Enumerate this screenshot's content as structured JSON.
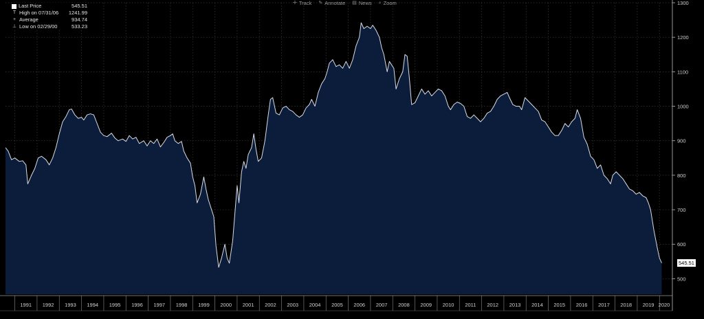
{
  "toolbar": {
    "items": [
      {
        "label": "Track",
        "icon": "crosshair-icon",
        "glyph": "✛"
      },
      {
        "label": "Annotate",
        "icon": "pencil-icon",
        "glyph": "✎"
      },
      {
        "label": "News",
        "icon": "news-icon",
        "glyph": "▤"
      },
      {
        "label": "Zoom",
        "icon": "magnifier-icon",
        "glyph": "⌕"
      }
    ]
  },
  "legend": {
    "rows": [
      {
        "marker": "square",
        "label": "Last Price",
        "value": "545.51"
      },
      {
        "marker": "T",
        "label": "High on 07/31/06",
        "value": "1241.99"
      },
      {
        "marker": "+",
        "label": "Average",
        "value": "934.74"
      },
      {
        "marker": "⊥",
        "label": "Low on 02/29/00",
        "value": "533.23"
      }
    ]
  },
  "last_price_label": "545.51",
  "colors": {
    "background": "#000000",
    "fill": "#0b1d3a",
    "line": "#d8dde6",
    "grid": "#3a3a3a",
    "axis_text": "#d0d0d0"
  },
  "chart_data": {
    "type": "area",
    "title": "",
    "xlabel": "",
    "ylabel": "",
    "ylim": [
      455,
      1300
    ],
    "yticks": [
      500,
      600,
      700,
      800,
      900,
      1000,
      1100,
      1200,
      1300
    ],
    "xlim": [
      1990.58,
      2020.58
    ],
    "xticks": [
      "1991",
      "1992",
      "1993",
      "1994",
      "1995",
      "1996",
      "1997",
      "1998",
      "1999",
      "2000",
      "2001",
      "2002",
      "2003",
      "2004",
      "2005",
      "2006",
      "2007",
      "2008",
      "2009",
      "2010",
      "2011",
      "2012",
      "2013",
      "2014",
      "2015",
      "2016",
      "2017",
      "2018",
      "2019",
      "2020"
    ],
    "grid": true,
    "y_axis_side": "right",
    "series": [
      {
        "values": [
          [
            1990.58,
            880
          ],
          [
            1990.7,
            870
          ],
          [
            1990.85,
            845
          ],
          [
            1991.0,
            850
          ],
          [
            1991.2,
            840
          ],
          [
            1991.35,
            842
          ],
          [
            1991.5,
            830
          ],
          [
            1991.58,
            775
          ],
          [
            1991.75,
            800
          ],
          [
            1991.9,
            820
          ],
          [
            1992.05,
            850
          ],
          [
            1992.2,
            855
          ],
          [
            1992.4,
            845
          ],
          [
            1992.55,
            830
          ],
          [
            1992.7,
            850
          ],
          [
            1992.85,
            880
          ],
          [
            1993.0,
            920
          ],
          [
            1993.15,
            955
          ],
          [
            1993.3,
            970
          ],
          [
            1993.45,
            990
          ],
          [
            1993.55,
            992
          ],
          [
            1993.7,
            975
          ],
          [
            1993.85,
            965
          ],
          [
            1994.0,
            968
          ],
          [
            1994.1,
            960
          ],
          [
            1994.25,
            975
          ],
          [
            1994.4,
            978
          ],
          [
            1994.55,
            975
          ],
          [
            1994.7,
            950
          ],
          [
            1994.85,
            925
          ],
          [
            1995.0,
            915
          ],
          [
            1995.15,
            912
          ],
          [
            1995.35,
            922
          ],
          [
            1995.5,
            908
          ],
          [
            1995.65,
            900
          ],
          [
            1995.85,
            905
          ],
          [
            1996.0,
            898
          ],
          [
            1996.15,
            915
          ],
          [
            1996.3,
            905
          ],
          [
            1996.45,
            910
          ],
          [
            1996.6,
            892
          ],
          [
            1996.8,
            900
          ],
          [
            1996.95,
            885
          ],
          [
            1997.1,
            900
          ],
          [
            1997.25,
            892
          ],
          [
            1997.4,
            905
          ],
          [
            1997.55,
            882
          ],
          [
            1997.7,
            895
          ],
          [
            1997.85,
            910
          ],
          [
            1998.0,
            915
          ],
          [
            1998.1,
            920
          ],
          [
            1998.2,
            900
          ],
          [
            1998.35,
            892
          ],
          [
            1998.5,
            898
          ],
          [
            1998.6,
            870
          ],
          [
            1998.75,
            850
          ],
          [
            1998.9,
            835
          ],
          [
            1999.0,
            795
          ],
          [
            1999.1,
            770
          ],
          [
            1999.2,
            720
          ],
          [
            1999.35,
            745
          ],
          [
            1999.5,
            795
          ],
          [
            1999.6,
            760
          ],
          [
            1999.7,
            730
          ],
          [
            1999.85,
            700
          ],
          [
            1999.95,
            680
          ],
          [
            2000.05,
            595
          ],
          [
            2000.17,
            533
          ],
          [
            2000.3,
            560
          ],
          [
            2000.45,
            600
          ],
          [
            2000.55,
            560
          ],
          [
            2000.65,
            545
          ],
          [
            2000.8,
            610
          ],
          [
            2000.9,
            690
          ],
          [
            2001.0,
            770
          ],
          [
            2001.08,
            720
          ],
          [
            2001.2,
            810
          ],
          [
            2001.3,
            840
          ],
          [
            2001.4,
            820
          ],
          [
            2001.5,
            860
          ],
          [
            2001.65,
            880
          ],
          [
            2001.75,
            920
          ],
          [
            2001.85,
            875
          ],
          [
            2001.95,
            840
          ],
          [
            2002.1,
            850
          ],
          [
            2002.25,
            900
          ],
          [
            2002.4,
            975
          ],
          [
            2002.5,
            1020
          ],
          [
            2002.6,
            1025
          ],
          [
            2002.75,
            980
          ],
          [
            2002.9,
            975
          ],
          [
            2003.05,
            995
          ],
          [
            2003.2,
            1000
          ],
          [
            2003.35,
            990
          ],
          [
            2003.5,
            985
          ],
          [
            2003.65,
            975
          ],
          [
            2003.8,
            968
          ],
          [
            2003.95,
            975
          ],
          [
            2004.1,
            995
          ],
          [
            2004.25,
            1005
          ],
          [
            2004.35,
            1020
          ],
          [
            2004.5,
            1000
          ],
          [
            2004.65,
            1040
          ],
          [
            2004.8,
            1065
          ],
          [
            2004.95,
            1080
          ],
          [
            2005.05,
            1100
          ],
          [
            2005.15,
            1125
          ],
          [
            2005.3,
            1135
          ],
          [
            2005.45,
            1115
          ],
          [
            2005.6,
            1120
          ],
          [
            2005.75,
            1110
          ],
          [
            2005.9,
            1130
          ],
          [
            2006.05,
            1110
          ],
          [
            2006.2,
            1135
          ],
          [
            2006.35,
            1175
          ],
          [
            2006.5,
            1200
          ],
          [
            2006.58,
            1242
          ],
          [
            2006.7,
            1225
          ],
          [
            2006.85,
            1232
          ],
          [
            2007.0,
            1225
          ],
          [
            2007.1,
            1235
          ],
          [
            2007.25,
            1220
          ],
          [
            2007.4,
            1200
          ],
          [
            2007.5,
            1170
          ],
          [
            2007.6,
            1150
          ],
          [
            2007.75,
            1100
          ],
          [
            2007.85,
            1130
          ],
          [
            2007.95,
            1120
          ],
          [
            2008.05,
            1110
          ],
          [
            2008.15,
            1050
          ],
          [
            2008.3,
            1080
          ],
          [
            2008.45,
            1100
          ],
          [
            2008.55,
            1150
          ],
          [
            2008.65,
            1145
          ],
          [
            2008.75,
            1080
          ],
          [
            2008.85,
            1005
          ],
          [
            2009.0,
            1010
          ],
          [
            2009.15,
            1030
          ],
          [
            2009.3,
            1050
          ],
          [
            2009.45,
            1035
          ],
          [
            2009.6,
            1045
          ],
          [
            2009.75,
            1030
          ],
          [
            2009.9,
            1040
          ],
          [
            2010.05,
            1050
          ],
          [
            2010.2,
            1045
          ],
          [
            2010.35,
            1030
          ],
          [
            2010.5,
            1000
          ],
          [
            2010.6,
            990
          ],
          [
            2010.75,
            1005
          ],
          [
            2010.9,
            1012
          ],
          [
            2011.05,
            1008
          ],
          [
            2011.2,
            1000
          ],
          [
            2011.35,
            970
          ],
          [
            2011.5,
            965
          ],
          [
            2011.65,
            975
          ],
          [
            2011.8,
            965
          ],
          [
            2011.95,
            955
          ],
          [
            2012.1,
            965
          ],
          [
            2012.25,
            980
          ],
          [
            2012.4,
            985
          ],
          [
            2012.55,
            1000
          ],
          [
            2012.7,
            1020
          ],
          [
            2012.85,
            1030
          ],
          [
            2013.0,
            1035
          ],
          [
            2013.15,
            1040
          ],
          [
            2013.25,
            1025
          ],
          [
            2013.4,
            1005
          ],
          [
            2013.55,
            1000
          ],
          [
            2013.7,
            1000
          ],
          [
            2013.8,
            990
          ],
          [
            2013.95,
            1025
          ],
          [
            2014.1,
            1015
          ],
          [
            2014.25,
            1005
          ],
          [
            2014.4,
            995
          ],
          [
            2014.55,
            985
          ],
          [
            2014.7,
            960
          ],
          [
            2014.85,
            955
          ],
          [
            2015.0,
            940
          ],
          [
            2015.15,
            925
          ],
          [
            2015.3,
            915
          ],
          [
            2015.45,
            915
          ],
          [
            2015.6,
            930
          ],
          [
            2015.75,
            950
          ],
          [
            2015.9,
            940
          ],
          [
            2016.05,
            955
          ],
          [
            2016.2,
            965
          ],
          [
            2016.3,
            990
          ],
          [
            2016.45,
            965
          ],
          [
            2016.6,
            910
          ],
          [
            2016.75,
            890
          ],
          [
            2016.9,
            855
          ],
          [
            2017.05,
            845
          ],
          [
            2017.2,
            820
          ],
          [
            2017.35,
            830
          ],
          [
            2017.5,
            800
          ],
          [
            2017.65,
            790
          ],
          [
            2017.8,
            775
          ],
          [
            2017.9,
            800
          ],
          [
            2018.05,
            810
          ],
          [
            2018.2,
            800
          ],
          [
            2018.35,
            790
          ],
          [
            2018.5,
            775
          ],
          [
            2018.65,
            760
          ],
          [
            2018.8,
            755
          ],
          [
            2018.95,
            745
          ],
          [
            2019.1,
            750
          ],
          [
            2019.25,
            740
          ],
          [
            2019.4,
            735
          ],
          [
            2019.5,
            720
          ],
          [
            2019.6,
            700
          ],
          [
            2019.75,
            640
          ],
          [
            2019.9,
            590
          ],
          [
            2020.0,
            560
          ],
          [
            2020.1,
            545.51
          ]
        ]
      }
    ]
  }
}
